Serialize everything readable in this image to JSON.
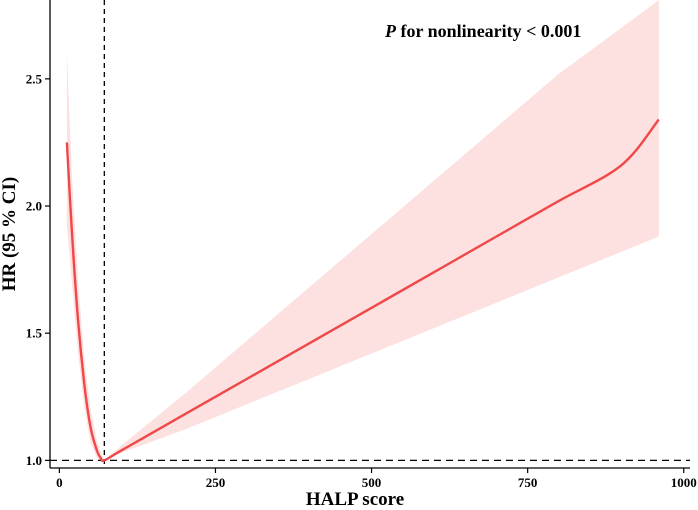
{
  "chart_data": {
    "type": "line",
    "xlabel": "HALP score",
    "ylabel": "HR (95 % CI)",
    "annotation": {
      "italic": "P",
      "rest": " for nonlinearity < 0.001"
    },
    "xlim": [
      -15,
      1010
    ],
    "ylim": [
      0.97,
      2.81
    ],
    "x_ticks": [
      0,
      250,
      500,
      750,
      1000
    ],
    "x_tick_labels": [
      "0",
      "250",
      "500",
      "750",
      "1000"
    ],
    "y_ticks": [
      1.0,
      1.5,
      2.0,
      2.5
    ],
    "y_tick_labels": [
      "1.0",
      "1.5",
      "2.0",
      "2.5"
    ],
    "reference_lines": {
      "x": 72,
      "y": 1.0
    },
    "series": [
      {
        "x": [
          12,
          20,
          30,
          40,
          50,
          60,
          66,
          72,
          100,
          200,
          300,
          400,
          500,
          600,
          700,
          800,
          900,
          960
        ],
        "y": [
          2.25,
          1.9,
          1.55,
          1.3,
          1.13,
          1.04,
          1.01,
          1.0,
          1.04,
          1.18,
          1.32,
          1.46,
          1.6,
          1.74,
          1.88,
          2.02,
          2.16,
          2.34
        ],
        "lower": [
          1.92,
          1.7,
          1.42,
          1.21,
          1.07,
          1.01,
          0.995,
          1.0,
          1.03,
          1.12,
          1.22,
          1.32,
          1.42,
          1.52,
          1.62,
          1.72,
          1.82,
          1.88
        ],
        "upper": [
          2.6,
          2.12,
          1.7,
          1.4,
          1.2,
          1.08,
          1.03,
          1.0,
          1.06,
          1.26,
          1.47,
          1.68,
          1.89,
          2.1,
          2.31,
          2.52,
          2.7,
          2.81
        ]
      }
    ],
    "colors": {
      "line": "#f04848",
      "band": "#fde0e0"
    }
  }
}
